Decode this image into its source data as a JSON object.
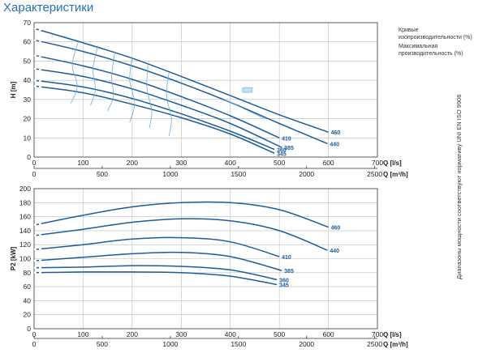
{
  "page": {
    "title": "Характеристики",
    "legend_efficiency": "Кривые изопроизводительности (%)",
    "legend_max_efficiency": "Максимальная производительность (%)",
    "side_note": "Диапазоны мощности соответствуют нормативу UNI EN ISO 9906"
  },
  "colors": {
    "curve": "#1c5c99",
    "efficiency": "#6aaee0",
    "grid": "#bbbbbb",
    "title": "#2a6fb6"
  },
  "chart_data": [
    {
      "type": "line",
      "ylabel": "H [m]",
      "xlabel": "Q [l/s]",
      "xlabel2": "Q [m³/h]",
      "xlim": [
        0,
        700
      ],
      "ylim": [
        0,
        70
      ],
      "x_ticks": [
        0,
        100,
        200,
        300,
        400,
        500,
        600,
        700
      ],
      "x2_ticks": [
        0,
        500,
        1000,
        1500,
        2000,
        2500
      ],
      "y_ticks": [
        0,
        10,
        20,
        30,
        40,
        50,
        60,
        70
      ],
      "grid": true,
      "series": [
        {
          "name": "460",
          "points": [
            [
              0,
              67
            ],
            [
              100,
              59.5
            ],
            [
              200,
              51.5
            ],
            [
              300,
              42
            ],
            [
              400,
              32
            ],
            [
              500,
              22
            ],
            [
              600,
              13
            ]
          ]
        },
        {
          "name": "440",
          "points": [
            [
              0,
              61
            ],
            [
              100,
              55
            ],
            [
              200,
              47.5
            ],
            [
              300,
              38.5
            ],
            [
              400,
              28.5
            ],
            [
              500,
              17.5
            ],
            [
              598,
              7
            ]
          ]
        },
        {
          "name": "410",
          "points": [
            [
              0,
              53
            ],
            [
              100,
              47.5
            ],
            [
              200,
              40.5
            ],
            [
              300,
              31.5
            ],
            [
              400,
              21.5
            ],
            [
              500,
              10
            ]
          ]
        },
        {
          "name": "385",
          "points": [
            [
              0,
              46
            ],
            [
              100,
              42
            ],
            [
              200,
              35.5
            ],
            [
              300,
              27
            ],
            [
              400,
              17.5
            ],
            [
              505,
              5
            ]
          ]
        },
        {
          "name": "360",
          "points": [
            [
              0,
              40
            ],
            [
              100,
              36.5
            ],
            [
              200,
              30.5
            ],
            [
              300,
              22.5
            ],
            [
              400,
              13.5
            ],
            [
              490,
              4
            ]
          ]
        },
        {
          "name": "345",
          "points": [
            [
              0,
              37
            ],
            [
              100,
              33.5
            ],
            [
              200,
              27.5
            ],
            [
              300,
              20.5
            ],
            [
              400,
              12
            ],
            [
              490,
              2
            ]
          ]
        }
      ]
    },
    {
      "type": "line",
      "ylabel": "P2 [kW]",
      "xlabel": "Q [l/s]",
      "xlabel2": "Q [m³/h]",
      "xlim": [
        0,
        700
      ],
      "ylim": [
        0,
        200
      ],
      "x_ticks": [
        0,
        100,
        200,
        300,
        400,
        500,
        600,
        700
      ],
      "x2_ticks": [
        0,
        500,
        1000,
        1500,
        2000,
        2500
      ],
      "y_ticks": [
        0,
        20,
        40,
        60,
        80,
        100,
        120,
        140,
        160,
        180,
        200
      ],
      "grid": true,
      "series": [
        {
          "name": "460",
          "points": [
            [
              0,
              148
            ],
            [
              100,
              162
            ],
            [
              200,
              174
            ],
            [
              300,
              180
            ],
            [
              400,
              180
            ],
            [
              500,
              170
            ],
            [
              600,
              145
            ]
          ]
        },
        {
          "name": "440",
          "points": [
            [
              0,
              133
            ],
            [
              100,
              142
            ],
            [
              200,
              152
            ],
            [
              300,
              157
            ],
            [
              400,
              154
            ],
            [
              500,
              140
            ],
            [
              598,
              112
            ]
          ]
        },
        {
          "name": "410",
          "points": [
            [
              0,
              113
            ],
            [
              100,
              120
            ],
            [
              200,
              128
            ],
            [
              300,
              130
            ],
            [
              400,
              124
            ],
            [
              500,
              103
            ]
          ]
        },
        {
          "name": "385",
          "points": [
            [
              0,
              97
            ],
            [
              100,
              102
            ],
            [
              200,
              107
            ],
            [
              300,
              109
            ],
            [
              400,
              103
            ],
            [
              505,
              83
            ]
          ]
        },
        {
          "name": "360",
          "points": [
            [
              0,
              87
            ],
            [
              100,
              88
            ],
            [
              200,
              90
            ],
            [
              300,
              89
            ],
            [
              400,
              84
            ],
            [
              495,
              70
            ]
          ]
        },
        {
          "name": "345",
          "points": [
            [
              0,
              80
            ],
            [
              100,
              81
            ],
            [
              200,
              81
            ],
            [
              300,
              80
            ],
            [
              400,
              75
            ],
            [
              495,
              63
            ]
          ]
        }
      ]
    }
  ]
}
